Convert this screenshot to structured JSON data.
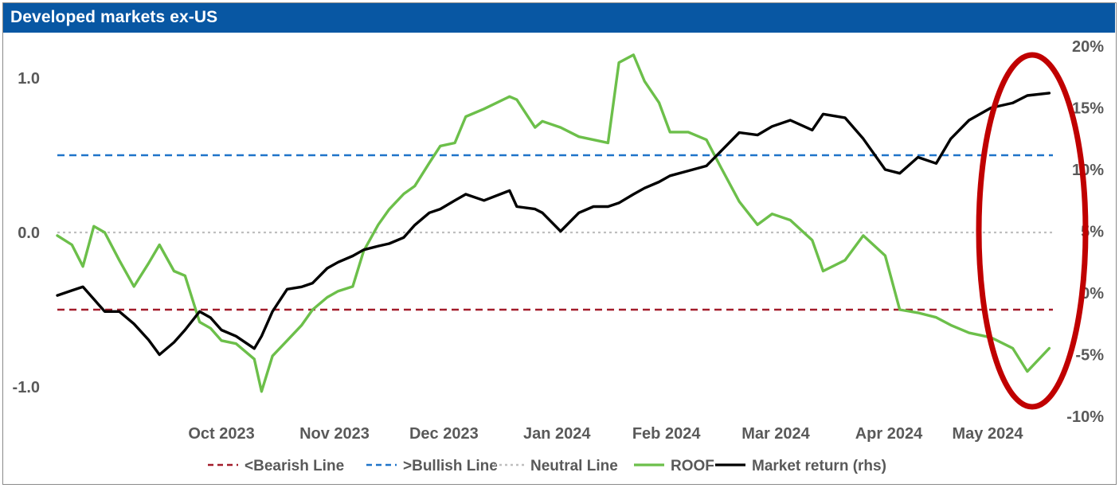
{
  "header": {
    "title": "Developed markets ex-US"
  },
  "colors": {
    "header_bg": "#0857a3",
    "bearish": "#a31d2b",
    "bullish": "#1f74c9",
    "neutral": "#bfbfbf",
    "roof": "#6cbf4a",
    "market": "#000000",
    "highlight_ellipse": "#c00000"
  },
  "chart_data": {
    "type": "line",
    "title": "Developed markets ex-US",
    "x_axis": {
      "tick_labels": [
        "Oct 2023",
        "Nov 2023",
        "Dec 2023",
        "Jan 2024",
        "Feb 2024",
        "Mar 2024",
        "Apr 2024",
        "May 2024"
      ],
      "range": [
        "2023-09-01",
        "2024-05-31"
      ]
    },
    "y_left": {
      "tick_labels": [
        "1.0",
        "0.0",
        "-1.0"
      ],
      "tick_values": [
        1.0,
        0.0,
        -1.0
      ],
      "range": [
        -1.2,
        1.2
      ]
    },
    "y_right": {
      "tick_labels": [
        "20%",
        "15%",
        "10%",
        "5%",
        "0%",
        "-5%",
        "-10%"
      ],
      "tick_values": [
        20,
        15,
        10,
        5,
        0,
        -5,
        -10
      ],
      "range": [
        -10,
        20
      ]
    },
    "reference_lines": [
      {
        "name": "<Bearish Line",
        "value": -0.5,
        "style": "dashed"
      },
      {
        "name": ">Bullish Line",
        "value": 0.5,
        "style": "dashed"
      },
      {
        "name": "Neutral Line",
        "value": 0.0,
        "style": "dotted"
      }
    ],
    "series": [
      {
        "name": "ROOF",
        "axis": "left",
        "x": [
          "2023-09-01",
          "2023-09-05",
          "2023-09-08",
          "2023-09-11",
          "2023-09-14",
          "2023-09-18",
          "2023-09-22",
          "2023-09-26",
          "2023-09-29",
          "2023-10-03",
          "2023-10-06",
          "2023-10-10",
          "2023-10-13",
          "2023-10-16",
          "2023-10-20",
          "2023-10-25",
          "2023-10-27",
          "2023-10-30",
          "2023-11-03",
          "2023-11-07",
          "2023-11-10",
          "2023-11-14",
          "2023-11-17",
          "2023-11-21",
          "2023-11-24",
          "2023-11-28",
          "2023-12-01",
          "2023-12-05",
          "2023-12-08",
          "2023-12-12",
          "2023-12-15",
          "2023-12-19",
          "2023-12-22",
          "2023-12-27",
          "2024-01-03",
          "2024-01-05",
          "2024-01-10",
          "2024-01-12",
          "2024-01-17",
          "2024-01-22",
          "2024-01-26",
          "2024-01-30",
          "2024-02-02",
          "2024-02-06",
          "2024-02-09",
          "2024-02-13",
          "2024-02-16",
          "2024-02-21",
          "2024-02-26",
          "2024-03-01",
          "2024-03-06",
          "2024-03-11",
          "2024-03-15",
          "2024-03-20",
          "2024-03-26",
          "2024-03-29",
          "2024-04-04",
          "2024-04-09",
          "2024-04-15",
          "2024-04-19",
          "2024-04-24",
          "2024-04-29",
          "2024-05-03",
          "2024-05-08",
          "2024-05-14",
          "2024-05-20",
          "2024-05-24",
          "2024-05-30"
        ],
        "values": [
          -0.02,
          -0.08,
          -0.22,
          0.04,
          0.0,
          -0.18,
          -0.35,
          -0.2,
          -0.08,
          -0.25,
          -0.28,
          -0.58,
          -0.62,
          -0.7,
          -0.72,
          -0.82,
          -1.03,
          -0.8,
          -0.7,
          -0.6,
          -0.5,
          -0.42,
          -0.38,
          -0.35,
          -0.12,
          0.05,
          0.15,
          0.25,
          0.3,
          0.45,
          0.56,
          0.58,
          0.75,
          0.8,
          0.88,
          0.86,
          0.68,
          0.72,
          0.68,
          0.62,
          0.6,
          0.58,
          1.1,
          1.15,
          0.98,
          0.84,
          0.65,
          0.65,
          0.6,
          0.42,
          0.2,
          0.05,
          0.12,
          0.08,
          -0.05,
          -0.25,
          -0.18,
          -0.02,
          -0.15,
          -0.5,
          -0.52,
          -0.55,
          -0.6,
          -0.65,
          -0.68,
          -0.75,
          -0.9,
          -0.75
        ],
        "color": "#6cbf4a"
      },
      {
        "name": "Market return (rhs)",
        "axis": "right",
        "x": [
          "2023-09-01",
          "2023-09-05",
          "2023-09-08",
          "2023-09-11",
          "2023-09-14",
          "2023-09-18",
          "2023-09-22",
          "2023-09-26",
          "2023-09-29",
          "2023-10-03",
          "2023-10-06",
          "2023-10-10",
          "2023-10-13",
          "2023-10-16",
          "2023-10-20",
          "2023-10-25",
          "2023-10-27",
          "2023-10-30",
          "2023-11-03",
          "2023-11-07",
          "2023-11-10",
          "2023-11-14",
          "2023-11-17",
          "2023-11-21",
          "2023-11-24",
          "2023-11-28",
          "2023-12-01",
          "2023-12-05",
          "2023-12-08",
          "2023-12-12",
          "2023-12-15",
          "2023-12-19",
          "2023-12-22",
          "2023-12-27",
          "2024-01-03",
          "2024-01-05",
          "2024-01-10",
          "2024-01-12",
          "2024-01-17",
          "2024-01-22",
          "2024-01-26",
          "2024-01-30",
          "2024-02-02",
          "2024-02-06",
          "2024-02-09",
          "2024-02-13",
          "2024-02-16",
          "2024-02-21",
          "2024-02-26",
          "2024-03-01",
          "2024-03-06",
          "2024-03-11",
          "2024-03-15",
          "2024-03-20",
          "2024-03-26",
          "2024-03-29",
          "2024-04-04",
          "2024-04-09",
          "2024-04-15",
          "2024-04-19",
          "2024-04-24",
          "2024-04-29",
          "2024-05-03",
          "2024-05-08",
          "2024-05-14",
          "2024-05-20",
          "2024-05-24",
          "2024-05-30"
        ],
        "values": [
          -0.2,
          0.2,
          0.5,
          -0.5,
          -1.5,
          -1.5,
          -2.5,
          -3.8,
          -5,
          -4,
          -3,
          -1.5,
          -2,
          -3,
          -3.5,
          -4.5,
          -3.5,
          -1.5,
          0.3,
          0.5,
          0.8,
          2,
          2.5,
          3,
          3.5,
          3.8,
          4,
          4.5,
          5.5,
          6.5,
          6.8,
          7.5,
          8,
          7.5,
          8.3,
          7,
          6.8,
          6.5,
          5,
          6.5,
          7,
          7,
          7.3,
          8,
          8.5,
          9,
          9.5,
          9.9,
          10.3,
          11.5,
          13,
          12.8,
          13.5,
          14,
          13.2,
          14.5,
          14.2,
          12.5,
          10,
          9.7,
          11,
          10.5,
          12.5,
          14,
          15,
          15.4,
          16,
          16.2
        ],
        "color": "#000000"
      }
    ],
    "legend": {
      "placement": "bottom",
      "entries": [
        "<Bearish Line",
        ">Bullish Line",
        "Neutral Line",
        "ROOF",
        "Market return (rhs)"
      ]
    },
    "annotation": "red ellipse highlighting most recent period (May 2024)",
    "grid": false
  }
}
